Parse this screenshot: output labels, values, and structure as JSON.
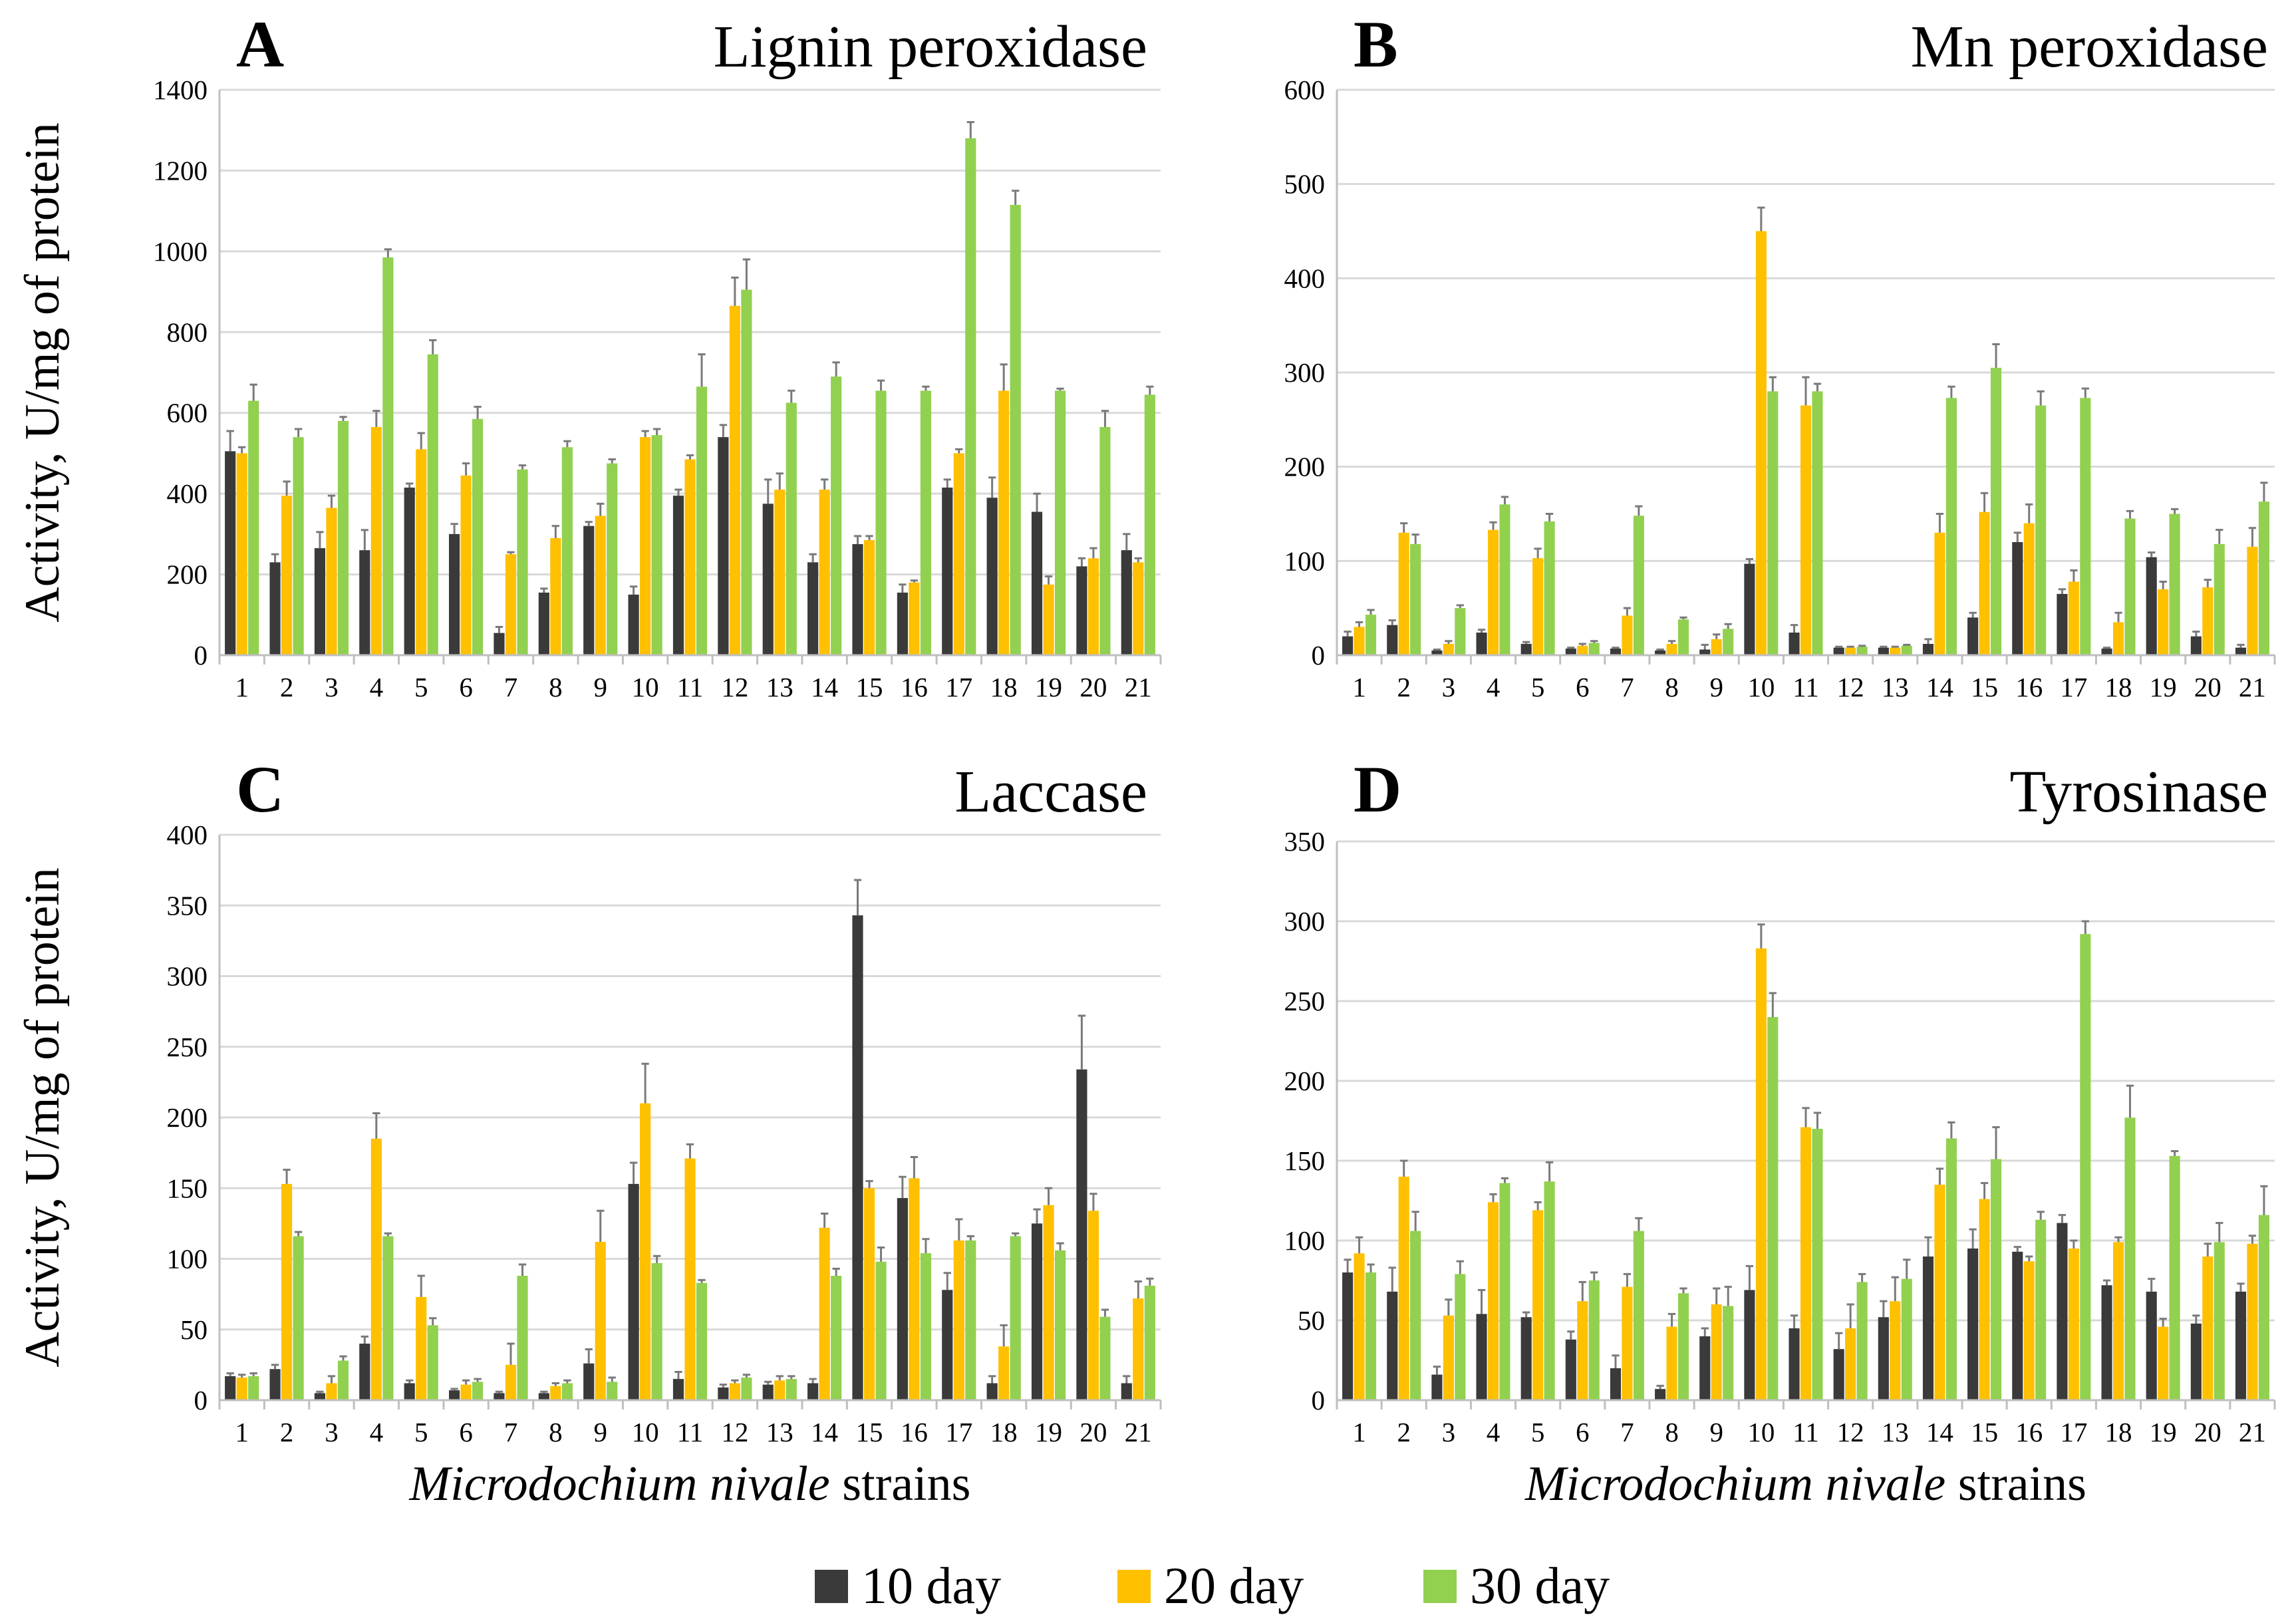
{
  "legend": [
    {
      "label": "10 day",
      "color": "#3a3a3a"
    },
    {
      "label": "20 day",
      "color": "#ffc000"
    },
    {
      "label": "30 day",
      "color": "#92d050"
    }
  ],
  "chart_data": [
    {
      "type": "bar",
      "letter": "A",
      "title": "Lignin peroxidase",
      "ylabel": "Activity,  U/mg of protein",
      "xlabel": "",
      "ylim": [
        0,
        1400
      ],
      "yticks": [
        0,
        200,
        400,
        600,
        800,
        1000,
        1200,
        1400
      ],
      "grid": true,
      "categories": [
        "1",
        "2",
        "3",
        "4",
        "5",
        "6",
        "7",
        "8",
        "9",
        "10",
        "11",
        "12",
        "13",
        "14",
        "15",
        "16",
        "17",
        "18",
        "19",
        "20",
        "21"
      ],
      "series": [
        {
          "name": "10 day",
          "values": [
            505,
            230,
            265,
            260,
            415,
            300,
            55,
            155,
            320,
            150,
            395,
            540,
            375,
            230,
            275,
            155,
            415,
            390,
            355,
            220,
            260
          ],
          "errors": [
            50,
            20,
            40,
            50,
            10,
            25,
            15,
            10,
            10,
            20,
            15,
            30,
            60,
            20,
            20,
            20,
            20,
            50,
            45,
            20,
            40
          ]
        },
        {
          "name": "20 day",
          "values": [
            500,
            395,
            365,
            565,
            510,
            445,
            250,
            290,
            345,
            540,
            485,
            865,
            410,
            410,
            285,
            180,
            500,
            655,
            175,
            240,
            230
          ],
          "errors": [
            15,
            35,
            30,
            40,
            40,
            30,
            5,
            30,
            30,
            15,
            10,
            70,
            40,
            25,
            10,
            5,
            10,
            65,
            20,
            25,
            10
          ]
        },
        {
          "name": "30 day",
          "values": [
            630,
            540,
            580,
            985,
            745,
            585,
            460,
            515,
            475,
            545,
            665,
            905,
            625,
            690,
            655,
            655,
            1280,
            1115,
            655,
            565,
            645
          ],
          "errors": [
            40,
            20,
            10,
            20,
            35,
            30,
            10,
            15,
            10,
            15,
            80,
            75,
            30,
            35,
            25,
            10,
            40,
            35,
            5,
            40,
            20
          ]
        }
      ]
    },
    {
      "type": "bar",
      "letter": "B",
      "title": "Mn peroxidase",
      "ylabel": "",
      "xlabel": "",
      "ylim": [
        0,
        600
      ],
      "yticks": [
        0,
        100,
        200,
        300,
        400,
        500,
        600
      ],
      "grid": true,
      "categories": [
        "1",
        "2",
        "3",
        "4",
        "5",
        "6",
        "7",
        "8",
        "9",
        "10",
        "11",
        "12",
        "13",
        "14",
        "15",
        "16",
        "17",
        "18",
        "19",
        "20",
        "21"
      ],
      "series": [
        {
          "name": "10 day",
          "values": [
            20,
            32,
            5,
            24,
            12,
            7,
            7,
            5,
            6,
            97,
            24,
            8,
            8,
            12,
            40,
            120,
            65,
            7,
            104,
            20,
            8
          ],
          "errors": [
            5,
            5,
            1,
            3,
            2,
            1,
            1,
            1,
            5,
            5,
            8,
            1,
            1,
            5,
            5,
            10,
            5,
            1,
            5,
            5,
            3
          ]
        },
        {
          "name": "20 day",
          "values": [
            30,
            130,
            12,
            133,
            103,
            10,
            42,
            12,
            17,
            450,
            265,
            8,
            8,
            130,
            152,
            140,
            78,
            35,
            70,
            72,
            115
          ],
          "errors": [
            5,
            10,
            3,
            8,
            10,
            2,
            8,
            3,
            5,
            25,
            30,
            1,
            1,
            20,
            20,
            20,
            12,
            10,
            8,
            8,
            20
          ]
        },
        {
          "name": "30 day",
          "values": [
            43,
            118,
            50,
            160,
            142,
            13,
            148,
            38,
            28,
            280,
            280,
            9,
            10,
            273,
            305,
            265,
            273,
            145,
            150,
            118,
            163
          ],
          "errors": [
            5,
            10,
            3,
            8,
            8,
            2,
            10,
            2,
            5,
            15,
            8,
            1,
            1,
            12,
            25,
            15,
            10,
            8,
            5,
            15,
            20
          ]
        }
      ]
    },
    {
      "type": "bar",
      "letter": "C",
      "title": "Laccase",
      "ylabel": "Activity,  U/mg of protein",
      "xlabel": "Microdochium nivale strains",
      "ylim": [
        0,
        400
      ],
      "yticks": [
        0,
        50,
        100,
        150,
        200,
        250,
        300,
        350,
        400
      ],
      "grid": true,
      "categories": [
        "1",
        "2",
        "3",
        "4",
        "5",
        "6",
        "7",
        "8",
        "9",
        "10",
        "11",
        "12",
        "13",
        "14",
        "15",
        "16",
        "17",
        "18",
        "19",
        "20",
        "21"
      ],
      "series": [
        {
          "name": "10 day",
          "values": [
            17,
            22,
            5,
            40,
            12,
            7,
            5,
            5,
            26,
            153,
            15,
            9,
            11,
            12,
            343,
            143,
            78,
            12,
            125,
            234,
            12
          ],
          "errors": [
            2,
            3,
            1,
            5,
            2,
            1,
            1,
            1,
            10,
            15,
            5,
            2,
            2,
            3,
            25,
            15,
            12,
            5,
            10,
            38,
            5
          ]
        },
        {
          "name": "20 day",
          "values": [
            16,
            153,
            12,
            185,
            73,
            11,
            25,
            10,
            112,
            210,
            171,
            12,
            14,
            122,
            150,
            157,
            113,
            38,
            138,
            134,
            72
          ],
          "errors": [
            2,
            10,
            5,
            18,
            15,
            3,
            15,
            2,
            22,
            28,
            10,
            2,
            3,
            10,
            5,
            15,
            15,
            15,
            12,
            12,
            12
          ]
        },
        {
          "name": "30 day",
          "values": [
            17,
            116,
            28,
            116,
            53,
            13,
            88,
            12,
            13,
            97,
            83,
            16,
            15,
            88,
            98,
            104,
            113,
            116,
            106,
            59,
            81
          ],
          "errors": [
            2,
            3,
            3,
            2,
            5,
            2,
            8,
            2,
            3,
            5,
            2,
            2,
            2,
            5,
            10,
            10,
            3,
            2,
            5,
            5,
            5
          ]
        }
      ]
    },
    {
      "type": "bar",
      "letter": "D",
      "title": "Tyrosinase",
      "ylabel": "",
      "xlabel": "Microdochium nivale strains",
      "ylim": [
        0,
        350
      ],
      "yticks": [
        0,
        50,
        100,
        150,
        200,
        250,
        300,
        350
      ],
      "grid": true,
      "categories": [
        "1",
        "2",
        "3",
        "4",
        "5",
        "6",
        "7",
        "8",
        "9",
        "10",
        "11",
        "12",
        "13",
        "14",
        "15",
        "16",
        "17",
        "18",
        "19",
        "20",
        "21"
      ],
      "series": [
        {
          "name": "10 day",
          "values": [
            80,
            68,
            16,
            54,
            52,
            38,
            20,
            7,
            40,
            69,
            45,
            32,
            52,
            90,
            95,
            93,
            111,
            72,
            68,
            48,
            68
          ],
          "errors": [
            8,
            15,
            5,
            15,
            3,
            5,
            8,
            2,
            5,
            15,
            8,
            10,
            10,
            12,
            12,
            3,
            5,
            3,
            8,
            5,
            5
          ]
        },
        {
          "name": "20 day",
          "values": [
            92,
            140,
            53,
            124,
            119,
            62,
            71,
            46,
            60,
            283,
            171,
            45,
            62,
            135,
            126,
            87,
            95,
            99,
            46,
            90,
            98
          ],
          "errors": [
            10,
            10,
            10,
            5,
            5,
            12,
            8,
            8,
            10,
            15,
            12,
            15,
            15,
            10,
            10,
            3,
            5,
            3,
            5,
            8,
            5
          ]
        },
        {
          "name": "30 day",
          "values": [
            80,
            106,
            79,
            136,
            137,
            75,
            106,
            67,
            59,
            240,
            170,
            74,
            76,
            164,
            151,
            113,
            292,
            177,
            153,
            99,
            116
          ],
          "errors": [
            5,
            12,
            8,
            3,
            12,
            5,
            8,
            3,
            12,
            15,
            10,
            5,
            12,
            10,
            20,
            5,
            8,
            20,
            3,
            12,
            18
          ]
        }
      ]
    }
  ]
}
